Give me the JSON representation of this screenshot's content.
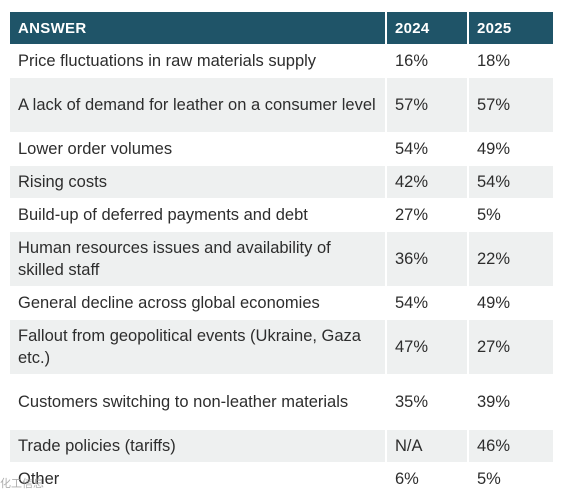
{
  "table": {
    "headers": [
      "ANSWER",
      "2024",
      "2025"
    ],
    "rows": [
      {
        "answer": "Price fluctuations in raw materials supply",
        "y2024": "16%",
        "y2025": "18%"
      },
      {
        "answer": "A lack of demand for leather on a consumer level",
        "y2024": "57%",
        "y2025": "57%"
      },
      {
        "answer": "Lower order volumes",
        "y2024": "54%",
        "y2025": "49%"
      },
      {
        "answer": "Rising costs",
        "y2024": "42%",
        "y2025": "54%"
      },
      {
        "answer": "Build-up of deferred payments and debt",
        "y2024": "27%",
        "y2025": "5%"
      },
      {
        "answer": "Human resources issues and availability of skilled staff",
        "y2024": "36%",
        "y2025": "22%"
      },
      {
        "answer": "General decline across global economies",
        "y2024": "54%",
        "y2025": "49%"
      },
      {
        "answer": "Fallout from geopolitical events (Ukraine, Gaza etc.)",
        "y2024": "47%",
        "y2025": "27%"
      },
      {
        "answer": "Customers switching to non-leather materials",
        "y2024": "35%",
        "y2025": "39%"
      },
      {
        "answer": "Trade policies (tariffs)",
        "y2024": "N/A",
        "y2025": "46%"
      },
      {
        "answer": "Other",
        "y2024": "6%",
        "y2025": "5%"
      }
    ]
  },
  "watermark": {
    "text": "化工信息"
  },
  "colors": {
    "header_bg": "#1f5468",
    "stripe_bg": "#eef0f0"
  }
}
